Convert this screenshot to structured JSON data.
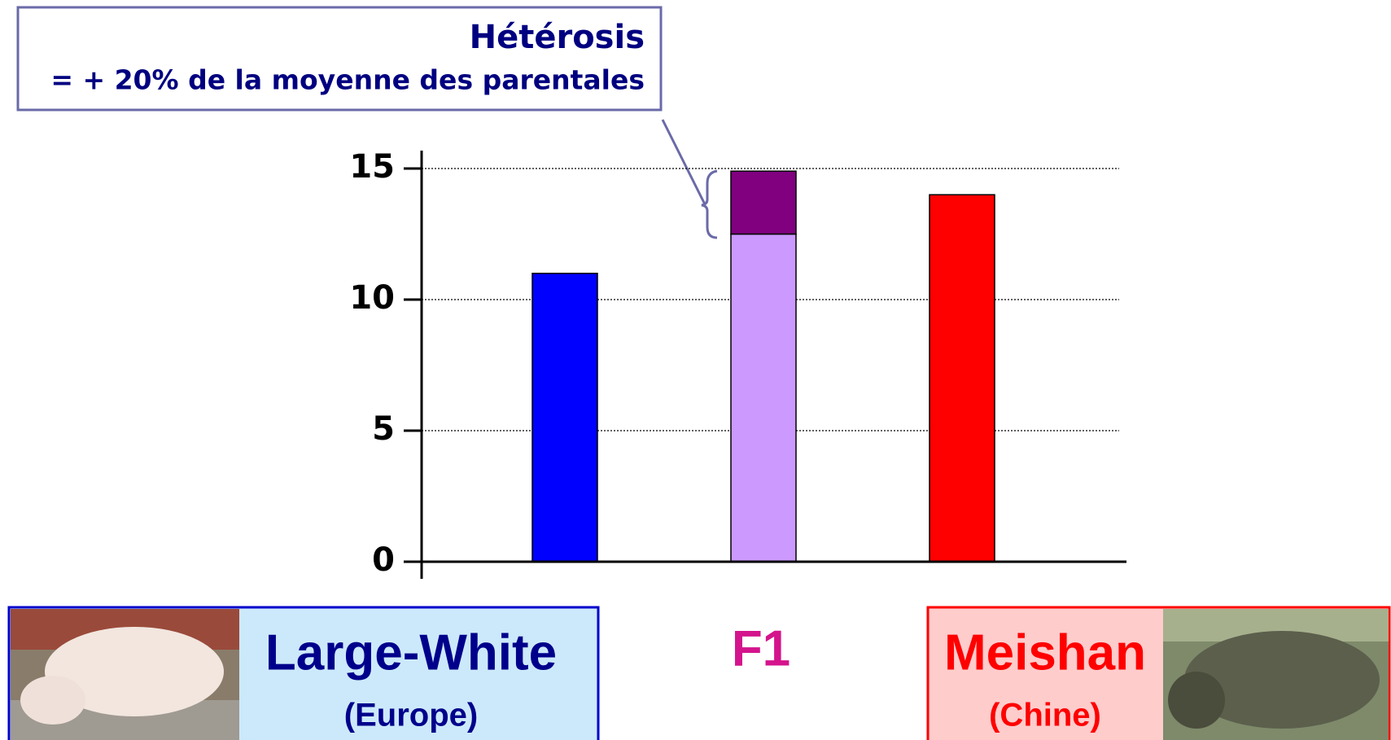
{
  "chart_data": {
    "type": "stacked-bar",
    "annotation_title": "Hétérosis",
    "annotation_text": "= + 20% de la moyenne des parentales",
    "categories": [
      "Large-White",
      "F1",
      "Meishan"
    ],
    "category_sublabels": [
      "(Europe)",
      null,
      "(Chine)"
    ],
    "category_colors": [
      "#00008b",
      "#d4148c",
      "#ff0000"
    ],
    "series": [
      {
        "colors": [
          "#0000ff",
          "#cc99ff",
          "#ff0000"
        ],
        "values": [
          11,
          12.5,
          14
        ]
      },
      {
        "color": "#800080",
        "values": [
          null,
          2.4,
          null
        ]
      }
    ],
    "ylim": [
      0,
      15
    ],
    "yticks": [
      0,
      5,
      10,
      15
    ],
    "grid": true
  }
}
